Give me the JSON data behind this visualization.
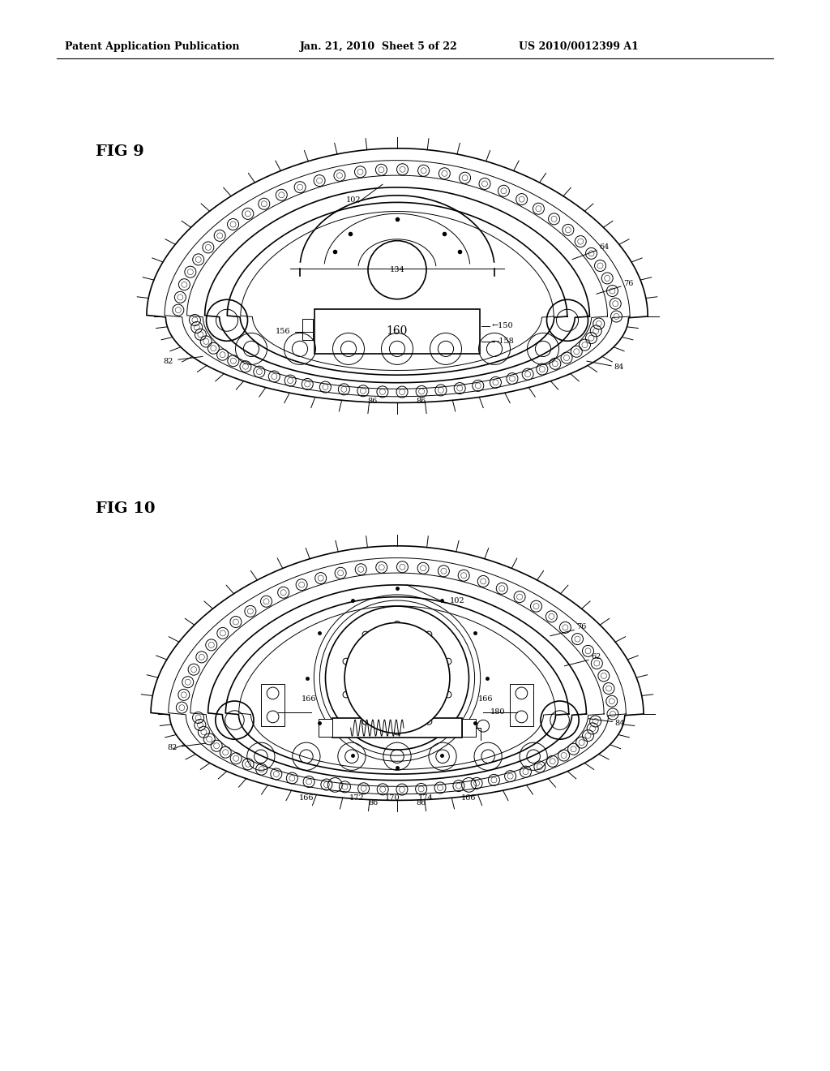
{
  "bg_color": "#ffffff",
  "text_color": "#000000",
  "line_color": "#000000",
  "header_left": "Patent Application Publication",
  "header_center": "Jan. 21, 2010  Sheet 5 of 22",
  "header_right": "US 2010/0012399 A1",
  "fig9_label": "FIG 9",
  "fig10_label": "FIG 10"
}
